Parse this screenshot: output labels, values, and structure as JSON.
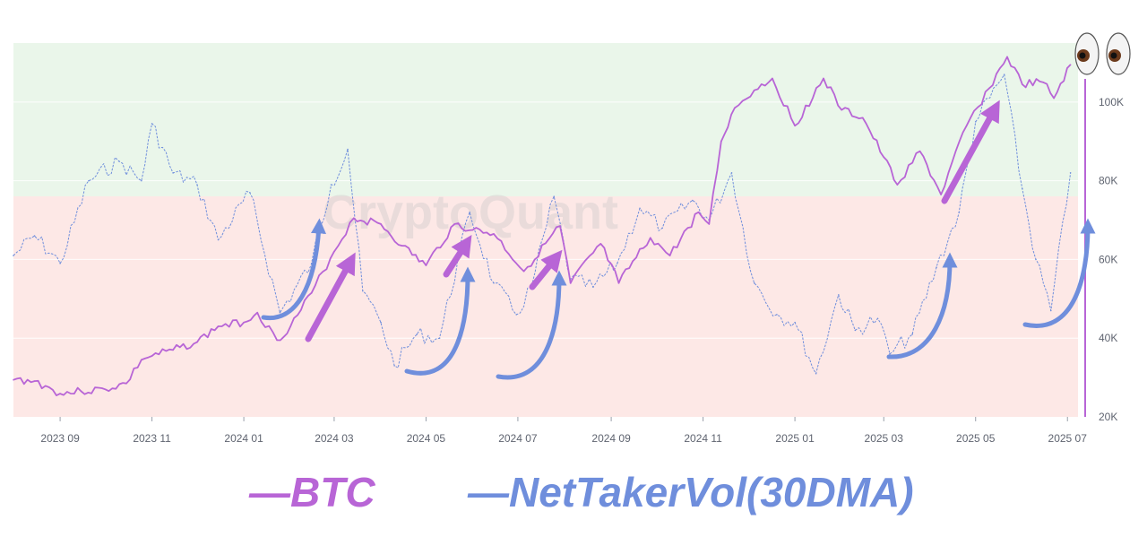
{
  "chart_data": {
    "type": "line",
    "title": "",
    "xlabel": "",
    "ylabel": "",
    "x_ticks": [
      "2023 09",
      "2023 11",
      "2024 01",
      "2024 03",
      "2024 05",
      "2024 07",
      "2024 09",
      "2024 11",
      "2025 01",
      "2025 03",
      "2025 05",
      "2025 07"
    ],
    "y_ticks": [
      "20K",
      "40K",
      "60K",
      "80K",
      "100K"
    ],
    "ylim": [
      20000,
      115000
    ],
    "y_axis_side": "right",
    "grid": true,
    "legend_position": "bottom",
    "watermark": "CryptoQuant",
    "bands": [
      {
        "name": "positive",
        "color": "#eaf6ea"
      },
      {
        "name": "negative",
        "color": "#fde8e6"
      }
    ],
    "series": [
      {
        "name": "BTC",
        "color": "#b865d6",
        "x": [
          "2023-08-01",
          "2023-08-15",
          "2023-09-01",
          "2023-09-15",
          "2023-10-01",
          "2023-10-15",
          "2023-10-25",
          "2023-11-01",
          "2023-11-15",
          "2023-12-01",
          "2023-12-15",
          "2024-01-01",
          "2024-01-10",
          "2024-01-23",
          "2024-02-01",
          "2024-02-15",
          "2024-03-01",
          "2024-03-14",
          "2024-04-01",
          "2024-04-15",
          "2024-05-01",
          "2024-05-20",
          "2024-06-01",
          "2024-06-15",
          "2024-07-05",
          "2024-07-29",
          "2024-08-05",
          "2024-08-25",
          "2024-09-06",
          "2024-09-27",
          "2024-10-10",
          "2024-10-29",
          "2024-11-05",
          "2024-11-13",
          "2024-11-22",
          "2024-12-05",
          "2024-12-17",
          "2025-01-01",
          "2025-01-20",
          "2025-02-01",
          "2025-02-15",
          "2025-03-01",
          "2025-03-10",
          "2025-03-25",
          "2025-04-08",
          "2025-04-25",
          "2025-05-10",
          "2025-05-22",
          "2025-06-01",
          "2025-06-15",
          "2025-06-22",
          "2025-07-03"
        ],
        "y": [
          29400,
          29100,
          25900,
          26500,
          27000,
          28500,
          34500,
          35500,
          37000,
          39000,
          43000,
          44000,
          46500,
          39500,
          43000,
          51500,
          62000,
          70500,
          69000,
          63500,
          58500,
          69000,
          67500,
          66500,
          57000,
          68500,
          54000,
          64000,
          54000,
          65500,
          61000,
          72000,
          69000,
          90000,
          98500,
          103000,
          106000,
          94000,
          106000,
          98000,
          96000,
          86000,
          79000,
          87500,
          76500,
          94000,
          103500,
          111500,
          104500,
          105000,
          101000,
          109500
        ]
      },
      {
        "name": "NetTakerVol(30DMA)",
        "color": "#6f8edc",
        "x": [
          "2023-08-01",
          "2023-08-15",
          "2023-09-01",
          "2023-09-20",
          "2023-10-10",
          "2023-10-25",
          "2023-11-01",
          "2023-11-15",
          "2023-12-01",
          "2023-12-15",
          "2024-01-05",
          "2024-01-25",
          "2024-02-15",
          "2024-02-28",
          "2024-03-10",
          "2024-03-20",
          "2024-04-01",
          "2024-04-10",
          "2024-04-25",
          "2024-05-10",
          "2024-05-30",
          "2024-06-15",
          "2024-06-30",
          "2024-07-10",
          "2024-07-25",
          "2024-08-05",
          "2024-08-20",
          "2024-09-05",
          "2024-09-20",
          "2024-10-05",
          "2024-10-25",
          "2024-11-05",
          "2024-11-20",
          "2024-12-05",
          "2024-12-20",
          "2025-01-01",
          "2025-01-15",
          "2025-01-30",
          "2025-02-10",
          "2025-02-25",
          "2025-03-05",
          "2025-03-20",
          "2025-04-05",
          "2025-04-20",
          "2025-05-01",
          "2025-05-20",
          "2025-06-01",
          "2025-06-10",
          "2025-06-20",
          "2025-07-03"
        ],
        "y": [
          61000,
          66000,
          59000,
          80000,
          85000,
          80000,
          94500,
          82000,
          79000,
          65000,
          77000,
          46500,
          59000,
          79000,
          88000,
          52000,
          44000,
          33000,
          41000,
          40000,
          72000,
          54000,
          46000,
          53000,
          76000,
          55000,
          53000,
          59000,
          73000,
          68000,
          75000,
          70000,
          82000,
          54000,
          46000,
          44000,
          31000,
          51000,
          42000,
          45000,
          36000,
          41000,
          58000,
          72000,
          95000,
          107000,
          78000,
          60000,
          47000,
          82000
        ]
      }
    ]
  },
  "legend": {
    "btc_label": "—BTC",
    "ntv_label": "—NetTakerVol(30DMA)"
  },
  "colors": {
    "btc": "#b865d6",
    "ntv": "#6f8edc",
    "annotation_arrow_purple": "#b865d6",
    "annotation_arrow_blue": "#6f8edc"
  },
  "decorations": {
    "eyes": "eyes-emoji"
  }
}
